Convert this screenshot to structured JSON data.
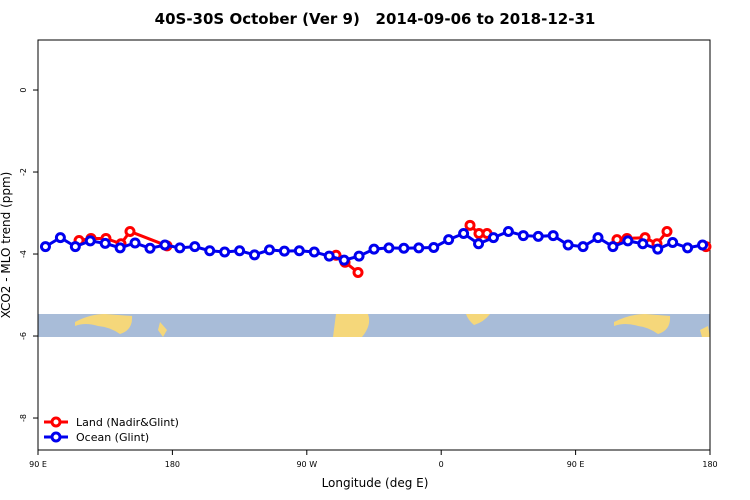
{
  "chart_data": {
    "type": "line",
    "title": "40S-30S October (Ver 9)   2014-09-06 to 2018-12-31",
    "xlabel": "Longitude (deg E)",
    "ylabel": "XCO2 - MLO trend (ppm)",
    "xlim": [
      90,
      540
    ],
    "xticks": [
      {
        "value": 90,
        "label": "90 E"
      },
      180,
      {
        "value": 270,
        "label": "90 W"
      },
      {
        "value": 360,
        "label": "0"
      },
      {
        "value": 450,
        "label": "90 E"
      },
      {
        "value": 540,
        "label": "180"
      }
    ],
    "ylim": [
      -8.78,
      1.22
    ],
    "yticks": [
      0,
      -2,
      -4,
      -6,
      -8
    ],
    "legend": "bottom-left",
    "series": [
      {
        "name": "Land (Nadir&Glint)",
        "color": "#ff0000",
        "x": [
          117.5,
          125.5,
          135.5,
          145.6,
          151.6,
          176.4,
          null,
          289.6,
          295.6,
          304.3,
          null,
          379.3,
          385.3,
          390.7,
          null,
          477.7,
          484.4,
          496.5,
          504.5,
          511.2,
          null,
          537.3
        ],
        "values": [
          -3.67,
          -3.62,
          -3.62,
          -3.75,
          -3.45,
          -3.8,
          null,
          -4.03,
          -4.2,
          -4.45,
          null,
          -3.3,
          -3.5,
          -3.5,
          null,
          -3.65,
          -3.62,
          -3.6,
          -3.75,
          -3.45,
          null,
          -3.82
        ]
      },
      {
        "name": "Ocean (Glint)",
        "color": "#0000ee",
        "x": [
          95,
          105,
          115,
          125,
          135,
          145,
          155,
          165,
          175,
          185,
          195,
          205,
          215,
          225,
          235,
          245,
          255,
          265,
          275,
          285,
          295,
          305,
          315,
          325,
          335,
          345,
          355,
          365,
          375,
          385,
          395,
          405,
          415,
          425,
          435,
          445,
          455,
          465,
          475,
          485,
          495,
          505,
          515,
          525,
          535
        ],
        "values": [
          -3.82,
          -3.6,
          -3.82,
          -3.68,
          -3.74,
          -3.85,
          -3.73,
          -3.86,
          -3.78,
          -3.85,
          -3.82,
          -3.92,
          -3.95,
          -3.92,
          -4.02,
          -3.9,
          -3.93,
          -3.92,
          -3.95,
          -4.05,
          -4.15,
          -4.05,
          -3.88,
          -3.85,
          -3.86,
          -3.85,
          -3.84,
          -3.65,
          -3.5,
          -3.75,
          -3.6,
          -3.45,
          -3.55,
          -3.57,
          -3.55,
          -3.78,
          -3.82,
          -3.6,
          -3.82,
          -3.68,
          -3.75,
          -3.88,
          -3.72,
          -3.85,
          -3.78
        ]
      }
    ]
  }
}
